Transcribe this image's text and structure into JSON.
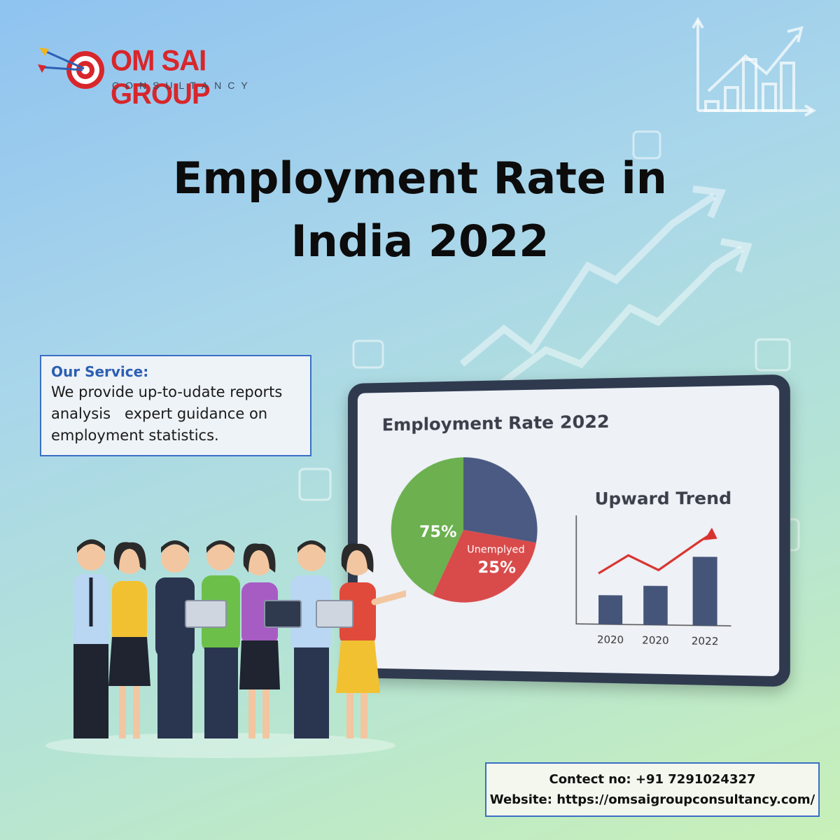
{
  "brand": {
    "name": "OM SAI GROUP",
    "tagline": "CONSULTANCY",
    "color": "#d8262b"
  },
  "headline": {
    "line1": "Employment Rate in",
    "line2": "India 2022"
  },
  "service": {
    "heading": "Our Service:",
    "body_lines": [
      "We provide up-to-udate reports",
      "analysis   expert guidance on",
      "employment statistics."
    ]
  },
  "chart_data": [
    {
      "type": "pie",
      "title": "Employment Rate 2022",
      "slices": [
        {
          "label": "",
          "value": 75,
          "display": "75%",
          "color": "#6cb04f"
        },
        {
          "label": "Unemplyed",
          "value": 25,
          "display": "25%",
          "color": "#d94a4a"
        },
        {
          "label": "",
          "value": 0,
          "display": "",
          "color": "#4a5a82"
        }
      ]
    },
    {
      "type": "bar",
      "title": "Upward Trend",
      "categories": [
        "2020",
        "2020",
        "2022"
      ],
      "values": [
        3,
        4,
        7
      ],
      "trend_line": true,
      "color": "#45557a",
      "line_color": "#d8322e"
    }
  ],
  "contact": {
    "phone_line": "Contect no: +91 7291024327",
    "website_label": "Website:",
    "website_url": "https://omsaigroupconsultancy.com/"
  }
}
